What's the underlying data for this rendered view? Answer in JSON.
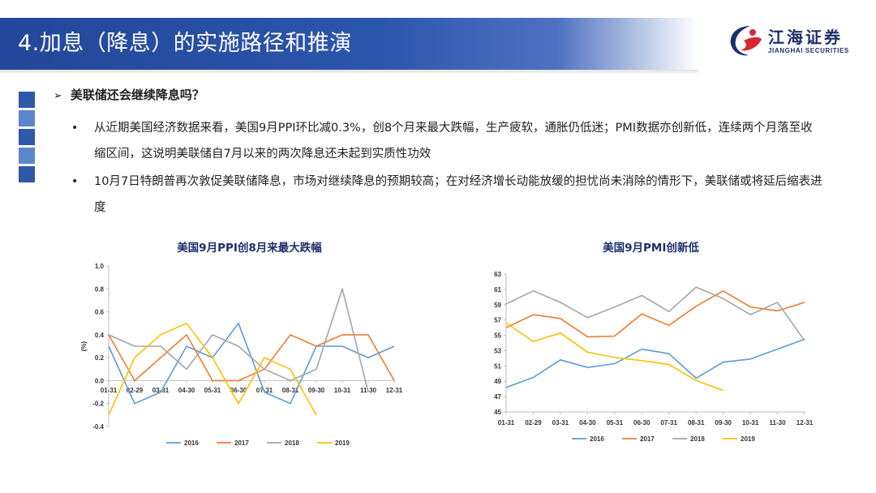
{
  "header": {
    "title": "4.加息（降息）的实施路径和推演",
    "logo_name": "江海证券",
    "logo_en": "JIANGHAI SECURITIES",
    "bar_color": "#23479a"
  },
  "content": {
    "question": "美联储还会继续降息吗？",
    "bullets": [
      "从近期美国经济数据来看，美国9月PPI环比减0.3%，创8个月来最大跌幅，生产疲软，通胀仍低迷；PMI数据亦创新低，连续两个月落至收缩区间，这说明美联储自7月以来的两次降息还未起到实质性功效",
      "10月7日特朗普再次敦促美联储降息，市场对继续降息的预期较高；在对经济增长动能放缓的担忧尚未消除的情形下，美联储或将延后缩表进度"
    ]
  },
  "chart_data": [
    {
      "type": "line",
      "title": "美国9月PPI创8月来最大跌幅",
      "ylabel": "(%)",
      "categories": [
        "01-31",
        "02-29",
        "03-31",
        "04-30",
        "05-31",
        "06-30",
        "07-31",
        "08-31",
        "09-30",
        "10-31",
        "11-30",
        "12-31"
      ],
      "ylim": [
        -0.4,
        1.0
      ],
      "yticks": [
        "1.0",
        "0.8",
        "0.6",
        "0.4",
        "0.2",
        "0.0",
        "-0.2",
        "-0.4"
      ],
      "legend_position": "bottom",
      "series": [
        {
          "name": "2016",
          "color": "#5b9bd5",
          "values": [
            0.3,
            -0.2,
            -0.1,
            0.3,
            0.2,
            0.5,
            -0.1,
            -0.2,
            0.3,
            0.3,
            0.2,
            0.3
          ]
        },
        {
          "name": "2017",
          "color": "#ed7d31",
          "values": [
            0.4,
            0.0,
            0.2,
            0.4,
            0.0,
            0.0,
            0.1,
            0.4,
            0.3,
            0.4,
            0.4,
            0.0
          ]
        },
        {
          "name": "2018",
          "color": "#a5a5a5",
          "values": [
            0.4,
            0.3,
            0.3,
            0.1,
            0.4,
            0.3,
            0.1,
            0.0,
            0.1,
            0.8,
            -0.1,
            null
          ]
        },
        {
          "name": "2019",
          "color": "#ffc000",
          "values": [
            -0.3,
            0.2,
            0.4,
            0.5,
            0.2,
            -0.2,
            0.2,
            0.1,
            -0.3,
            null,
            null,
            null
          ]
        }
      ]
    },
    {
      "type": "line",
      "title": "美国9月PMI创新低",
      "categories": [
        "01-31",
        "02-29",
        "03-31",
        "04-30",
        "05-31",
        "06-30",
        "07-31",
        "08-31",
        "09-30",
        "10-31",
        "11-30",
        "12-31"
      ],
      "ylim": [
        45,
        63
      ],
      "yticks": [
        "63",
        "61",
        "59",
        "57",
        "55",
        "53",
        "51",
        "49",
        "47",
        "45"
      ],
      "legend_position": "bottom",
      "series": [
        {
          "name": "2016",
          "color": "#5b9bd5",
          "values": [
            48.2,
            49.5,
            51.8,
            50.8,
            51.3,
            53.2,
            52.6,
            49.4,
            51.5,
            51.9,
            53.2,
            54.5
          ]
        },
        {
          "name": "2017",
          "color": "#ed7d31",
          "values": [
            56.0,
            57.7,
            57.2,
            54.8,
            54.9,
            57.8,
            56.3,
            58.8,
            60.8,
            58.7,
            58.2,
            59.3
          ]
        },
        {
          "name": "2018",
          "color": "#a5a5a5",
          "values": [
            59.1,
            60.8,
            59.3,
            57.3,
            58.7,
            60.2,
            58.1,
            61.3,
            59.8,
            57.7,
            59.3,
            54.3
          ]
        },
        {
          "name": "2019",
          "color": "#ffc000",
          "values": [
            56.6,
            54.2,
            55.3,
            52.8,
            52.1,
            51.7,
            51.2,
            49.1,
            47.8,
            null,
            null,
            null
          ]
        }
      ]
    }
  ]
}
